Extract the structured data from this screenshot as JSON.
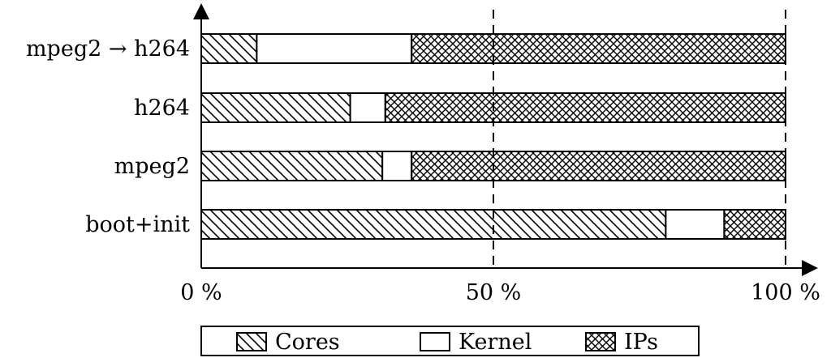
{
  "chart_data": {
    "type": "bar",
    "orientation": "horizontal",
    "stacked": true,
    "categories": [
      "mpeg2 → h264",
      "h264",
      "mpeg2",
      "boot+init"
    ],
    "series": [
      {
        "name": "Cores",
        "pattern": "diagonal-hatch",
        "values": [
          9.5,
          25.5,
          31.0,
          79.5
        ]
      },
      {
        "name": "Kernel",
        "pattern": "plain",
        "values": [
          26.5,
          6.0,
          5.0,
          10.0
        ]
      },
      {
        "name": "IPs",
        "pattern": "crosshatch",
        "values": [
          64.0,
          68.5,
          64.0,
          10.5
        ]
      }
    ],
    "xlim": [
      0,
      100
    ],
    "x_ticks": [
      {
        "value": 0,
        "label": "0 %"
      },
      {
        "value": 50,
        "label": "50 %"
      },
      {
        "value": 100,
        "label": "100 %"
      }
    ],
    "gridlines": [
      50,
      100
    ],
    "grid_style": "dashed",
    "legend_position": "bottom",
    "colors": {
      "ink": "#000000",
      "background": "#ffffff"
    }
  }
}
